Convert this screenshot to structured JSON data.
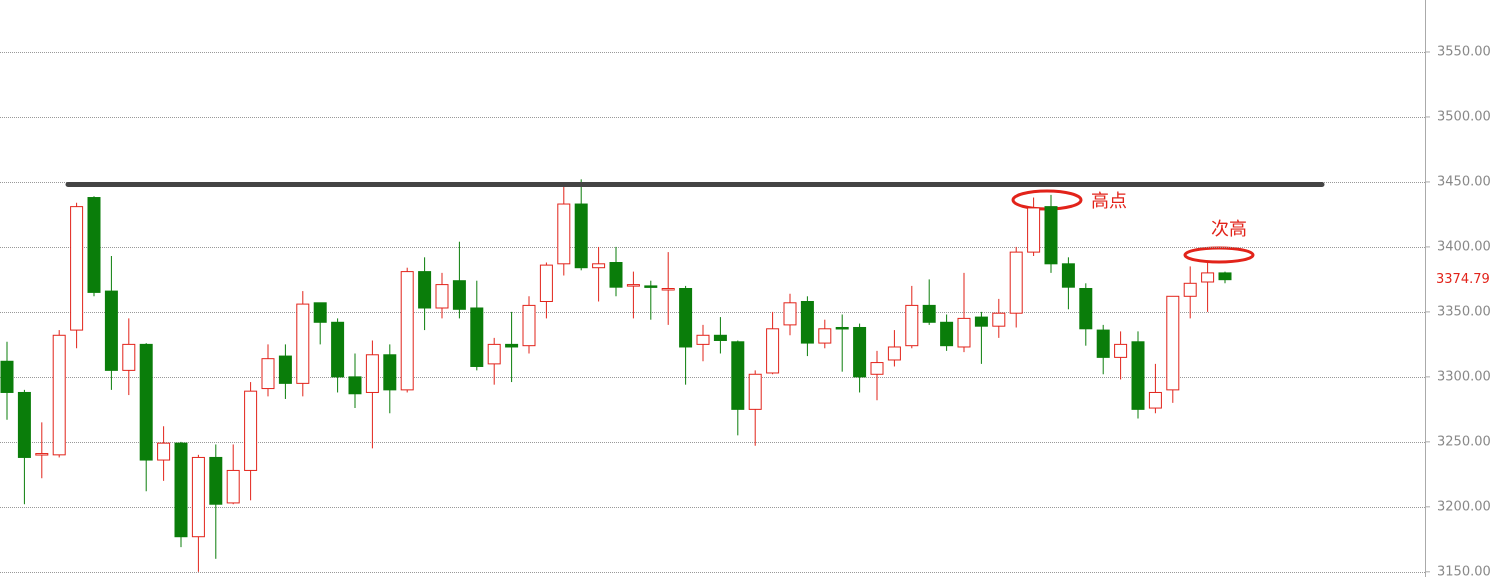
{
  "chart_data": {
    "type": "candlestick",
    "open": [
      3312,
      3288,
      3240,
      3240,
      3336,
      3438,
      3366,
      3305,
      3325,
      3236,
      3249,
      3177,
      3238,
      3203,
      3228,
      3291,
      3316,
      3295,
      3357,
      3342,
      3300,
      3288,
      3317,
      3290,
      3381,
      3353,
      3374,
      3353,
      3310,
      3325,
      3324,
      3358,
      3387,
      3433,
      3384,
      3388,
      3370,
      3370,
      3367,
      3368,
      3325,
      3332,
      3327,
      3275,
      3303,
      3340,
      3358,
      3326,
      3338,
      3338,
      3302,
      3313,
      3324,
      3355,
      3342,
      3323,
      3346,
      3339,
      3349,
      3396,
      3431,
      3387,
      3368,
      3336,
      3315,
      3327,
      3276,
      3290,
      3362,
      3373,
      3380
    ],
    "high": [
      3327,
      3290,
      3265,
      3336,
      3434,
      3439,
      3393,
      3345,
      3326,
      3262,
      3250,
      3240,
      3248,
      3248,
      3296,
      3325,
      3325,
      3366,
      3357,
      3345,
      3318,
      3328,
      3325,
      3384,
      3392,
      3380,
      3404,
      3374,
      3330,
      3350,
      3362,
      3388,
      3448,
      3452,
      3400,
      3400,
      3381,
      3374,
      3396,
      3370,
      3340,
      3346,
      3328,
      3305,
      3350,
      3364,
      3362,
      3344,
      3348,
      3341,
      3320,
      3336,
      3370,
      3375,
      3348,
      3380,
      3350,
      3360,
      3400,
      3438,
      3440,
      3392,
      3372,
      3340,
      3335,
      3335,
      3310,
      3362,
      3385,
      3388,
      3381
    ],
    "low": [
      3267,
      3202,
      3222,
      3238,
      3322,
      3362,
      3290,
      3286,
      3212,
      3220,
      3169,
      3150,
      3160,
      3202,
      3205,
      3285,
      3283,
      3285,
      3325,
      3288,
      3276,
      3245,
      3272,
      3288,
      3336,
      3345,
      3345,
      3305,
      3294,
      3296,
      3318,
      3345,
      3378,
      3382,
      3358,
      3362,
      3345,
      3344,
      3340,
      3294,
      3312,
      3318,
      3255,
      3247,
      3302,
      3332,
      3316,
      3322,
      3304,
      3288,
      3282,
      3308,
      3322,
      3340,
      3320,
      3319,
      3310,
      3330,
      3338,
      3393,
      3380,
      3352,
      3324,
      3302,
      3298,
      3268,
      3272,
      3280,
      3345,
      3350,
      3372
    ],
    "close": [
      3288,
      3238,
      3241,
      3332,
      3431,
      3365,
      3305,
      3325,
      3236,
      3249,
      3177,
      3238,
      3202,
      3228,
      3289,
      3314,
      3295,
      3356,
      3342,
      3300,
      3287,
      3317,
      3290,
      3381,
      3353,
      3371,
      3352,
      3308,
      3325,
      3323,
      3355,
      3386,
      3433,
      3384,
      3387,
      3369,
      3371,
      3369,
      3368,
      3323,
      3332,
      3328,
      3275,
      3302,
      3337,
      3357,
      3326,
      3337,
      3337,
      3300,
      3311,
      3323,
      3355,
      3342,
      3324,
      3345,
      3339,
      3349,
      3396,
      3430,
      3387,
      3369,
      3337,
      3315,
      3325,
      3275,
      3288,
      3362,
      3372,
      3380,
      3374.79
    ],
    "up_color": "#e2231a",
    "down_color": "#0a7d0a",
    "ylim": [
      3146,
      3590
    ],
    "yticks": [
      {
        "value": 3150,
        "label": "3150.00"
      },
      {
        "value": 3200,
        "label": "3200.00"
      },
      {
        "value": 3250,
        "label": "3250.00"
      },
      {
        "value": 3300,
        "label": "3300.00"
      },
      {
        "value": 3350,
        "label": "3350.00"
      },
      {
        "value": 3400,
        "label": "3400.00"
      },
      {
        "value": 3450,
        "label": "3450.00"
      },
      {
        "value": 3500,
        "label": "3500.00"
      },
      {
        "value": 3550,
        "label": "3550.00"
      }
    ],
    "grid": true,
    "last_price": 3374.79,
    "resistance_line": 3448,
    "annotations": [
      "高点",
      "次高"
    ]
  }
}
